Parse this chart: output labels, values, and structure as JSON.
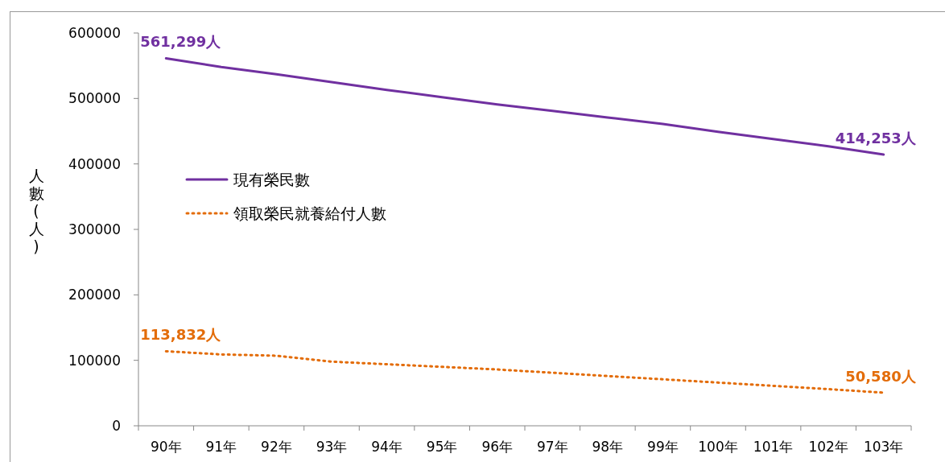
{
  "chart_data": {
    "type": "line",
    "ylabel": "人數(人)",
    "categories": [
      "90年",
      "91年",
      "92年",
      "93年",
      "94年",
      "95年",
      "96年",
      "97年",
      "98年",
      "99年",
      "100年",
      "101年",
      "102年",
      "103年"
    ],
    "ylim": [
      0,
      600000
    ],
    "yticks": [
      0,
      100000,
      200000,
      300000,
      400000,
      500000,
      600000
    ],
    "grid": false,
    "legend": "left",
    "marker": "none",
    "series": [
      {
        "name": "現有榮民數",
        "color": "#7030a0",
        "line_style": "solid",
        "values": [
          561299,
          548000,
          537000,
          525000,
          513000,
          502000,
          491000,
          481000,
          471000,
          461000,
          449000,
          438000,
          427000,
          414253
        ],
        "value_labels": [
          "561,299人",
          null,
          null,
          null,
          null,
          null,
          null,
          null,
          null,
          null,
          null,
          null,
          null,
          "414,253人"
        ]
      },
      {
        "name": "領取榮民就養給付人數",
        "color": "#e36c09",
        "line_style": "dotted",
        "values": [
          113832,
          109000,
          107000,
          98000,
          94000,
          90000,
          86000,
          81000,
          76000,
          71000,
          66000,
          61000,
          56000,
          50580
        ],
        "value_labels": [
          "113,832人",
          null,
          null,
          null,
          null,
          null,
          null,
          null,
          null,
          null,
          null,
          null,
          null,
          "50,580人"
        ]
      }
    ]
  }
}
